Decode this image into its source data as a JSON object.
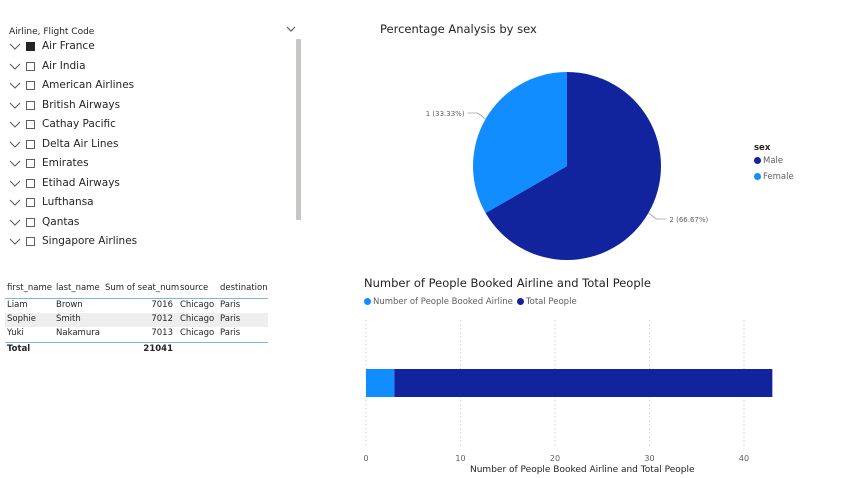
{
  "slicer": {
    "title": "Airline, Flight Code",
    "items": [
      {
        "label": "Air France",
        "checked": true
      },
      {
        "label": "Air India",
        "checked": false
      },
      {
        "label": "American Airlines",
        "checked": false
      },
      {
        "label": "British Airways",
        "checked": false
      },
      {
        "label": "Cathay Pacific",
        "checked": false
      },
      {
        "label": "Delta Air Lines",
        "checked": false
      },
      {
        "label": "Emirates",
        "checked": false
      },
      {
        "label": "Etihad Airways",
        "checked": false
      },
      {
        "label": "Lufthansa",
        "checked": false
      },
      {
        "label": "Qantas",
        "checked": false
      },
      {
        "label": "Singapore Airlines",
        "checked": false
      }
    ]
  },
  "table": {
    "headers": [
      "first_name",
      "last_name",
      "Sum of seat_num",
      "source",
      "destination"
    ],
    "rows": [
      [
        "Liam",
        "Brown",
        "7016",
        "Chicago",
        "Paris"
      ],
      [
        "Sophie",
        "Smith",
        "7012",
        "Chicago",
        "Paris"
      ],
      [
        "Yuki",
        "Nakamura",
        "7013",
        "Chicago",
        "Paris"
      ]
    ],
    "total_label": "Total",
    "total_value": "21041"
  },
  "chart_data": [
    {
      "type": "pie",
      "title": "Percentage Analysis by sex",
      "legend_title": "sex",
      "legend_position": "right",
      "slices": [
        {
          "name": "Male",
          "value": 2,
          "label": "2 (66.67%)",
          "color": "#12239E"
        },
        {
          "name": "Female",
          "value": 1,
          "label": "1 (33.33%)",
          "color": "#118DFF"
        }
      ]
    },
    {
      "type": "bar",
      "orientation": "horizontal",
      "stacked": true,
      "title": "Number of People Booked Airline and Total People",
      "xlabel": "Number of People Booked Airline and Total People",
      "legend_position": "top-left",
      "xlim": [
        0,
        45
      ],
      "xticks": [
        "0",
        "10",
        "20",
        "30",
        "40"
      ],
      "grid": true,
      "series": [
        {
          "name": "Number of People Booked Airline",
          "values": [
            3
          ],
          "color": "#118DFF"
        },
        {
          "name": "Total People",
          "values": [
            40
          ],
          "color": "#12239E"
        }
      ]
    }
  ]
}
